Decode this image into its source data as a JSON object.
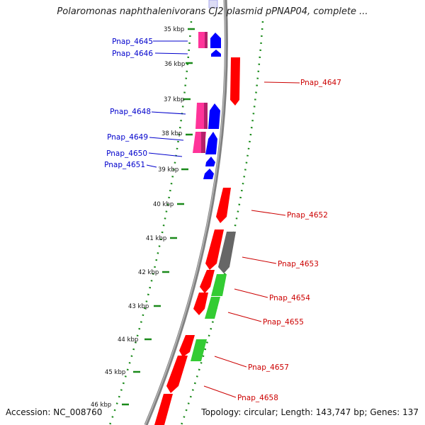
{
  "title": "Polaromonas naphthalenivorans CJ2 plasmid pPNAP04, complete ...",
  "accession": "Accession: NC_008760",
  "summary": "Topology: circular; Length: 143,747 bp; Genes: 137",
  "colors": {
    "backbone": "#808080",
    "tick": "#1a8a1a",
    "label_left": "#0000cc",
    "label_right": "#cc0000",
    "forward_cds": "#0000ff",
    "forward_pink": "#ff3399",
    "reverse_cds": "#ff0000",
    "green_feature": "#33cc33",
    "gray_feature": "#666666"
  },
  "kbp_labels": [
    {
      "kbp": 35,
      "label": "35 kbp"
    },
    {
      "kbp": 36,
      "label": "36 kbp"
    },
    {
      "kbp": 37,
      "label": "37 kbp"
    },
    {
      "kbp": 38,
      "label": "38 kbp"
    },
    {
      "kbp": 39,
      "label": "39 kbp"
    },
    {
      "kbp": 40,
      "label": "40 kbp"
    },
    {
      "kbp": 41,
      "label": "41 kbp"
    },
    {
      "kbp": 42,
      "label": "42 kbp"
    },
    {
      "kbp": 43,
      "label": "43 kbp"
    },
    {
      "kbp": 44,
      "label": "44 kbp"
    },
    {
      "kbp": 45,
      "label": "45 kbp"
    },
    {
      "kbp": 46,
      "label": "46 kbp"
    }
  ],
  "genes_left": [
    {
      "name": "Pnap_4645"
    },
    {
      "name": "Pnap_4646"
    },
    {
      "name": "Pnap_4648"
    },
    {
      "name": "Pnap_4649"
    },
    {
      "name": "Pnap_4650"
    },
    {
      "name": "Pnap_4651"
    }
  ],
  "genes_right": [
    {
      "name": "Pnap_4647"
    },
    {
      "name": "Pnap_4652"
    },
    {
      "name": "Pnap_4653"
    },
    {
      "name": "Pnap_4654"
    },
    {
      "name": "Pnap_4655"
    },
    {
      "name": "Pnap_4657"
    },
    {
      "name": "Pnap_4658"
    }
  ]
}
